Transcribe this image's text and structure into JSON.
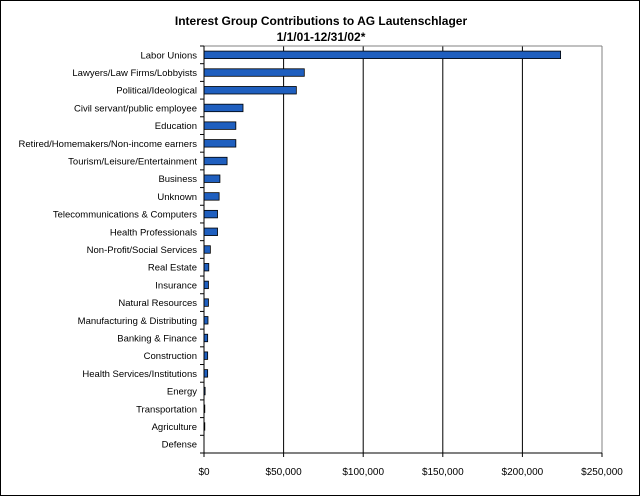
{
  "chart_data": {
    "type": "bar",
    "orientation": "horizontal",
    "title": "Interest Group Contributions to AG Lautenschlager",
    "subtitle": "1/1/01-12/31/02*",
    "xlabel": "",
    "ylabel": "",
    "xlim": [
      0,
      250000
    ],
    "x_ticks": [
      {
        "value": 0,
        "label": "$0"
      },
      {
        "value": 50000,
        "label": "$50,000"
      },
      {
        "value": 100000,
        "label": "$100,000"
      },
      {
        "value": 150000,
        "label": "$150,000"
      },
      {
        "value": 200000,
        "label": "$200,000"
      },
      {
        "value": 250000,
        "label": "$250,000"
      }
    ],
    "grid": "vertical",
    "legend": "none",
    "bar_color": "#1f5fbf",
    "categories": [
      "Labor Unions",
      "Lawyers/Law Firms/Lobbyists",
      "Political/Ideological",
      "Civil servant/public employee",
      "Education",
      "Retired/Homemakers/Non-income earners",
      "Tourism/Leisure/Entertainment",
      "Business",
      "Unknown",
      "Telecommunications & Computers",
      "Health Professionals",
      "Non-Profit/Social Services",
      "Real Estate",
      "Insurance",
      "Natural Resources",
      "Manufacturing & Distributing",
      "Banking & Finance",
      "Construction",
      "Health Services/Institutions",
      "Energy",
      "Transportation",
      "Agriculture",
      "Defense"
    ],
    "values": [
      224000,
      63000,
      58000,
      24500,
      20000,
      20000,
      14500,
      10000,
      9500,
      8500,
      8500,
      4000,
      3000,
      2800,
      2800,
      2500,
      2300,
      2300,
      2300,
      700,
      500,
      500,
      0
    ]
  }
}
